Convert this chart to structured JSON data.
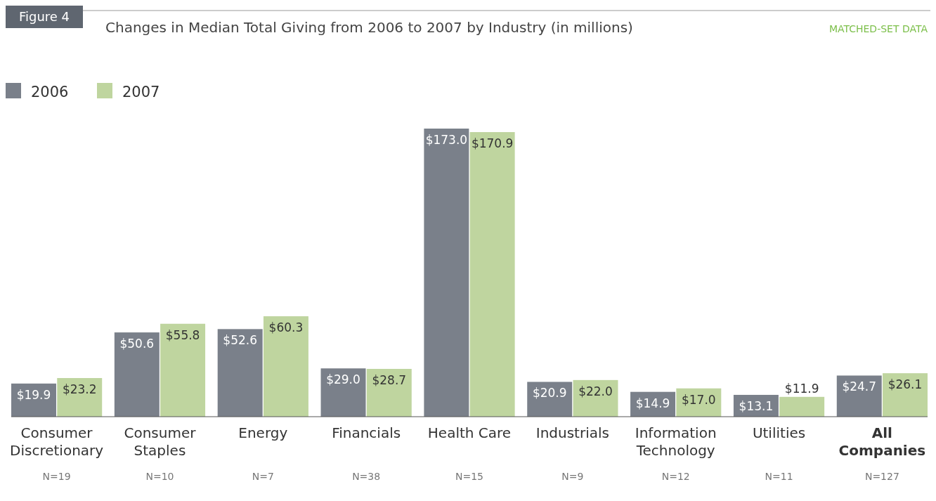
{
  "chart_data": {
    "type": "bar",
    "title": "Changes in Median Total Giving from 2006 to 2007 by Industry (in millions)",
    "subtitle": "MATCHED-SET DATA",
    "categories": [
      "Consumer Discretionary",
      "Consumer Staples",
      "Energy",
      "Financials",
      "Health Care",
      "Industrials",
      "Information Technology",
      "Utilities",
      "All Companies"
    ],
    "series": [
      {
        "name": "2006",
        "color": "#7a808a",
        "values": [
          19.9,
          50.6,
          52.6,
          29.0,
          173.0,
          20.9,
          14.9,
          13.1,
          24.7
        ],
        "value_labels": [
          "$19.9",
          "$50.6",
          "$52.6",
          "$29.0",
          "$173.0",
          "$20.9",
          "$14.9",
          "$13.1",
          "$24.7"
        ]
      },
      {
        "name": "2007",
        "color": "#bfd59f",
        "values": [
          23.2,
          55.8,
          60.3,
          28.7,
          170.9,
          22.0,
          17.0,
          11.9,
          26.1
        ],
        "value_labels": [
          "$23.2",
          "$55.8",
          "$60.3",
          "$28.7",
          "$170.9",
          "$22.0",
          "$17.0",
          "$11.9",
          "$26.1"
        ]
      }
    ],
    "legend": "top left",
    "annotations": [
      "Figure 4",
      "N=19",
      "N=10",
      "N=7",
      "N=38",
      "N=15",
      "N=9",
      "N=12",
      "N=11",
      "N=127"
    ]
  }
}
